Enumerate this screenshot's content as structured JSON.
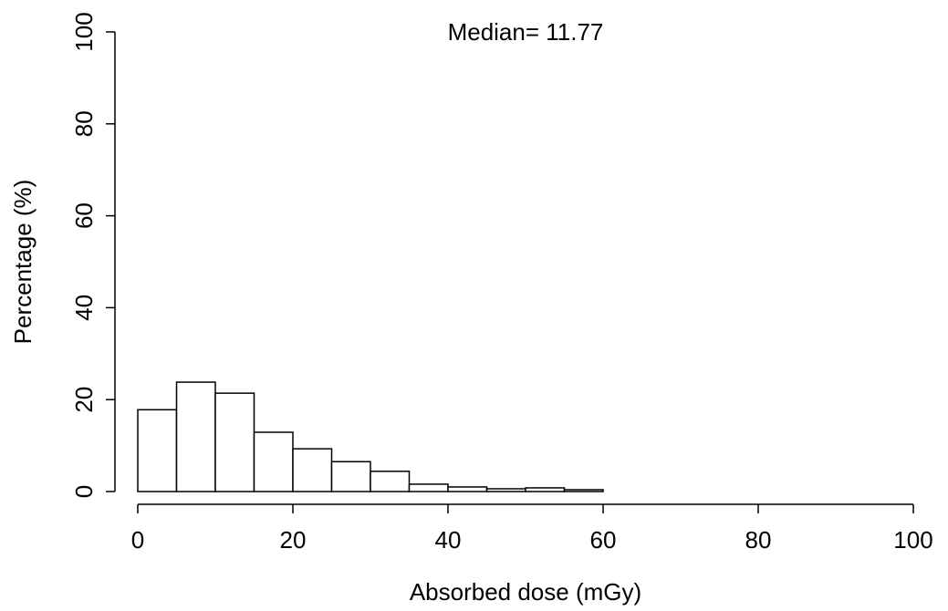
{
  "chart_data": {
    "type": "histogram",
    "annotation": "Median= 11.77",
    "x_label": "Absorbed dose (mGy)",
    "y_label": "Percentage (%)",
    "bins": [
      0,
      5,
      10,
      15,
      20,
      25,
      30,
      35,
      40,
      45,
      50,
      55,
      60
    ],
    "values": [
      17.8,
      23.8,
      21.4,
      12.9,
      9.3,
      6.5,
      4.4,
      1.6,
      1.0,
      0.6,
      0.8,
      0.4
    ],
    "color": "#ffffff",
    "xlim": [
      0,
      100
    ],
    "xticks": [
      0,
      20,
      40,
      60,
      80,
      100
    ],
    "ylim": [
      0,
      100
    ],
    "yticks": [
      0,
      20,
      40,
      60,
      80,
      100
    ]
  }
}
